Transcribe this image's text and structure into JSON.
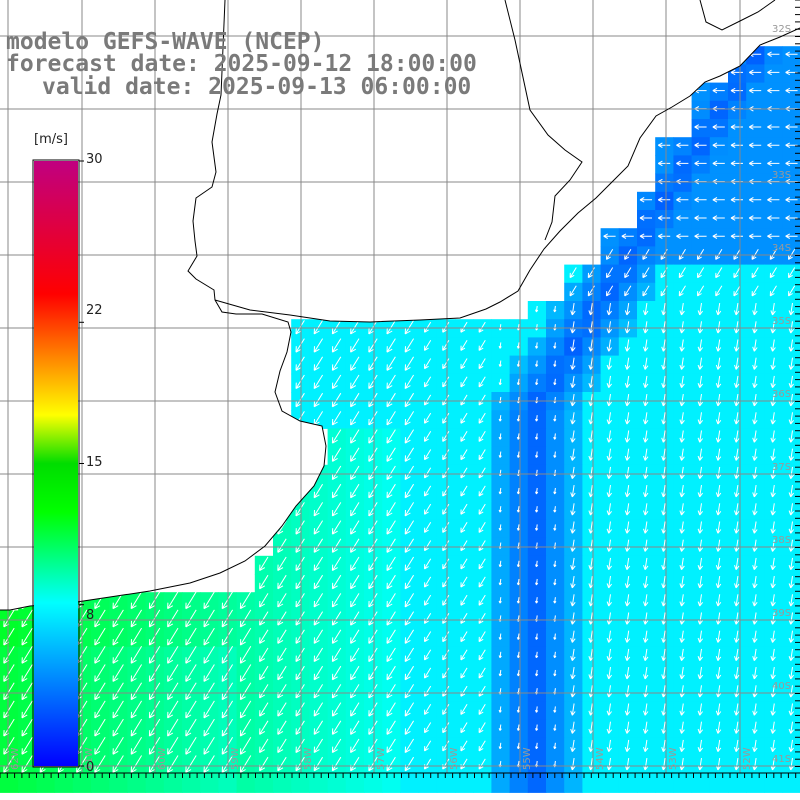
{
  "title": {
    "model": "modelo GEFS-WAVE (NCEP)",
    "forecast": "forecast date: 2025-09-12 18:00:00",
    "valid": "valid date: 2025-09-13 06:00:00"
  },
  "colorbar": {
    "unit": "[m/s]",
    "ticks": [
      "30",
      "22",
      "15",
      "8",
      "0"
    ],
    "tick_values": [
      30,
      22,
      15,
      8,
      0
    ],
    "colors": [
      "#0000ff",
      "#00ffff",
      "#00ff00",
      "#ffff00",
      "#ff0000",
      "#c00080"
    ]
  },
  "map": {
    "lat_labels": [
      "32S",
      "33S",
      "34S",
      "35S",
      "36S",
      "37S",
      "38S",
      "39S",
      "40S",
      "41S"
    ],
    "lon_labels": [
      "62W",
      "61W",
      "60W",
      "59W",
      "58W",
      "57W",
      "56W",
      "55W",
      "54W",
      "53W",
      "52W"
    ],
    "land_color": "#ffffff",
    "grid_color": "#888888",
    "arrow_color": "#ffffff"
  }
}
